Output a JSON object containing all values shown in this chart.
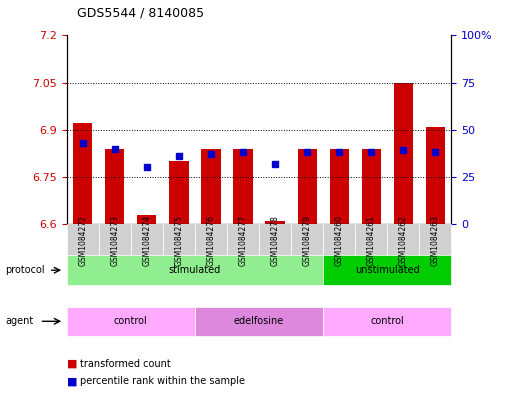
{
  "title": "GDS5544 / 8140085",
  "samples": [
    "GSM1084272",
    "GSM1084273",
    "GSM1084274",
    "GSM1084275",
    "GSM1084276",
    "GSM1084277",
    "GSM1084278",
    "GSM1084279",
    "GSM1084260",
    "GSM1084261",
    "GSM1084262",
    "GSM1084263"
  ],
  "bar_values": [
    6.92,
    6.84,
    6.63,
    6.8,
    6.84,
    6.84,
    6.61,
    6.84,
    6.84,
    6.84,
    7.05,
    6.91
  ],
  "blue_dot_values": [
    43,
    40,
    30,
    36,
    37,
    38,
    32,
    38,
    38,
    38,
    39,
    38
  ],
  "bar_bottom": 6.6,
  "ylim_left": [
    6.6,
    7.2
  ],
  "ylim_right": [
    0,
    100
  ],
  "yticks_left": [
    6.6,
    6.75,
    6.9,
    7.05,
    7.2
  ],
  "yticks_right": [
    0,
    25,
    50,
    75,
    100
  ],
  "ytick_labels_left": [
    "6.6",
    "6.75",
    "6.9",
    "7.05",
    "7.2"
  ],
  "ytick_labels_right": [
    "0",
    "25",
    "50",
    "75",
    "100%"
  ],
  "grid_lines": [
    6.75,
    6.9,
    7.05
  ],
  "bar_color": "#cc0000",
  "dot_color": "#0000cc",
  "protocol_groups": [
    {
      "label": "stimulated",
      "start": 0,
      "end": 7,
      "color": "#90ee90"
    },
    {
      "label": "unstimulated",
      "start": 8,
      "end": 11,
      "color": "#00cc00"
    }
  ],
  "agent_groups": [
    {
      "label": "control",
      "start": 0,
      "end": 3,
      "color": "#ffaaff"
    },
    {
      "label": "edelfosine",
      "start": 4,
      "end": 7,
      "color": "#dd88dd"
    },
    {
      "label": "control",
      "start": 8,
      "end": 11,
      "color": "#ffaaff"
    }
  ],
  "legend_items": [
    {
      "label": "transformed count",
      "color": "#cc0000"
    },
    {
      "label": "percentile rank within the sample",
      "color": "#0000cc"
    }
  ],
  "bar_width": 0.6,
  "bar_color_hex": "#cc0000",
  "dot_color_hex": "#0000cc"
}
